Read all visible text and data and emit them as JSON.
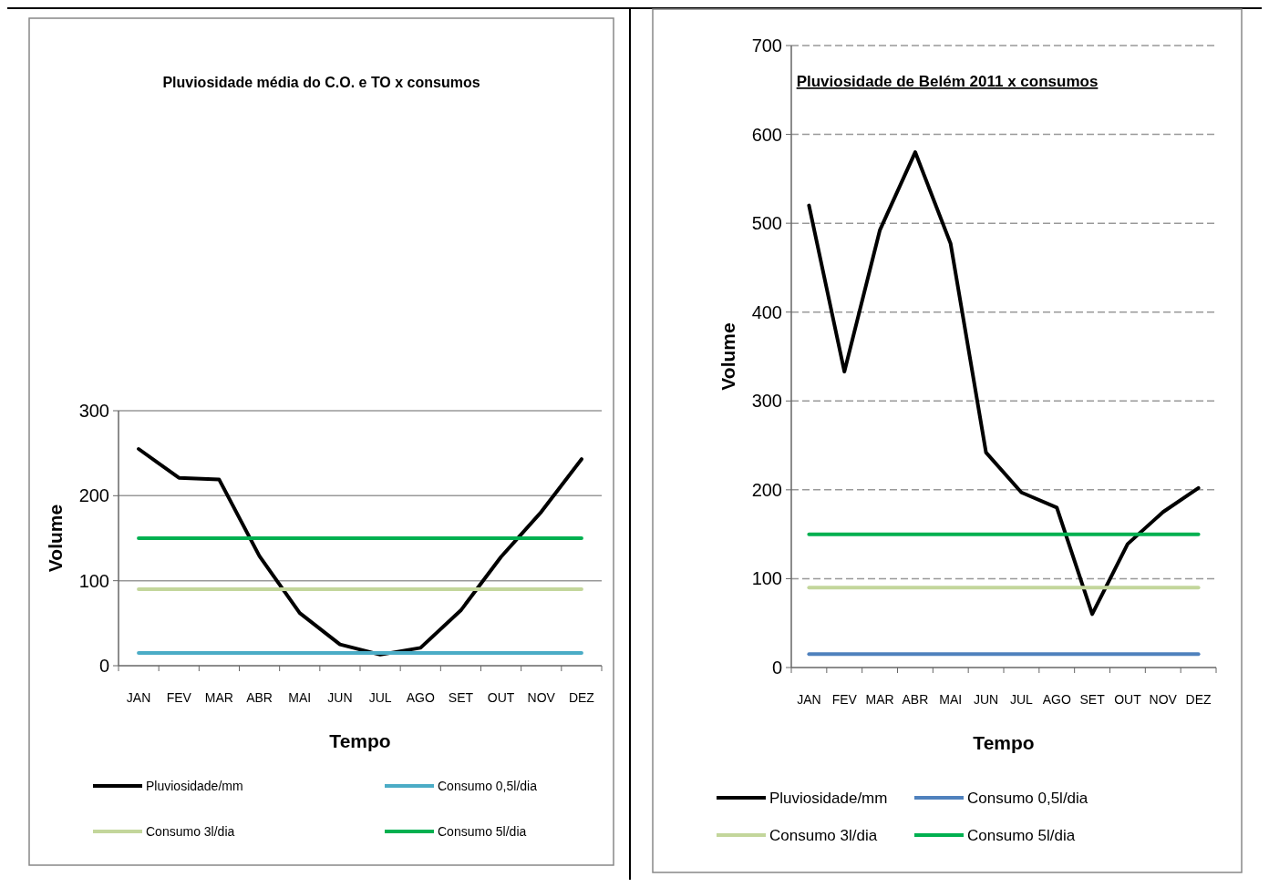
{
  "chart_data": [
    {
      "type": "line",
      "title": "Pluviosidade média do C.O. e TO x consumos",
      "xlabel": "Tempo",
      "ylabel": "Volume",
      "categories": [
        "JAN",
        "FEV",
        "MAR",
        "ABR",
        "MAI",
        "JUN",
        "JUL",
        "AGO",
        "SET",
        "OUT",
        "NOV",
        "DEZ"
      ],
      "ylim": [
        0,
        300
      ],
      "yticks": [
        0,
        100,
        200,
        300
      ],
      "grid": "y",
      "legend": "bottom",
      "marker": "none",
      "line_style": "solid",
      "series": [
        {
          "name": "Pluviosidade/mm",
          "color": "#000000",
          "values": [
            255,
            221,
            219,
            129,
            62,
            25,
            13,
            21,
            65,
            128,
            181,
            243
          ]
        },
        {
          "name": "Consumo 0,5l/dia",
          "color": "#4bacc6",
          "values": [
            15,
            15,
            15,
            15,
            15,
            15,
            15,
            15,
            15,
            15,
            15,
            15
          ]
        },
        {
          "name": "Consumo 3l/dia",
          "color": "#c3d69b",
          "values": [
            90,
            90,
            90,
            90,
            90,
            90,
            90,
            90,
            90,
            90,
            90,
            90
          ]
        },
        {
          "name": "Consumo 5l/dia",
          "color": "#00b050",
          "values": [
            150,
            150,
            150,
            150,
            150,
            150,
            150,
            150,
            150,
            150,
            150,
            150
          ]
        }
      ]
    },
    {
      "type": "line",
      "title": "Pluviosidade de Belém 2011 x consumos",
      "xlabel": "Tempo",
      "ylabel": "Volume",
      "categories": [
        "JAN",
        "FEV",
        "MAR",
        "ABR",
        "MAI",
        "JUN",
        "JUL",
        "AGO",
        "SET",
        "OUT",
        "NOV",
        "DEZ"
      ],
      "ylim": [
        0,
        700
      ],
      "yticks": [
        0,
        100,
        200,
        300,
        400,
        500,
        600,
        700
      ],
      "grid": "y",
      "legend": "bottom",
      "marker": "none",
      "line_style": "solid",
      "series": [
        {
          "name": "Pluviosidade/mm",
          "color": "#000000",
          "values": [
            520,
            333,
            492,
            580,
            477,
            242,
            197,
            180,
            60,
            139,
            175,
            202
          ]
        },
        {
          "name": "Consumo 0,5l/dia",
          "color": "#4f81bd",
          "values": [
            15,
            15,
            15,
            15,
            15,
            15,
            15,
            15,
            15,
            15,
            15,
            15
          ]
        },
        {
          "name": "Consumo 3l/dia",
          "color": "#c3d69b",
          "values": [
            90,
            90,
            90,
            90,
            90,
            90,
            90,
            90,
            90,
            90,
            90,
            90
          ]
        },
        {
          "name": "Consumo 5l/dia",
          "color": "#00b050",
          "values": [
            150,
            150,
            150,
            150,
            150,
            150,
            150,
            150,
            150,
            150,
            150,
            150
          ]
        }
      ]
    }
  ]
}
